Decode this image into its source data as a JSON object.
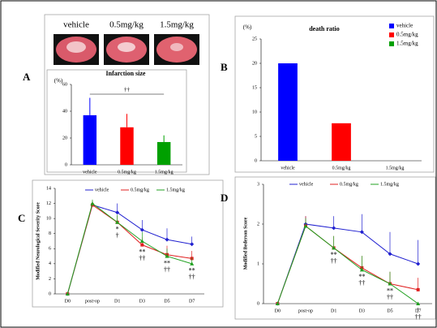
{
  "chart_data": [
    {
      "type": "bar",
      "panel_label": "A",
      "image_labels": [
        "vehicle",
        "0.5mg/kg",
        "1.5mg/kg"
      ],
      "title": "Infarction size",
      "y_label": "(%)",
      "annotation": "††",
      "categories": [
        "vehicle",
        "0.5mg/kg",
        "1.5mg/kg"
      ],
      "values": [
        37,
        28,
        17
      ],
      "errors": [
        13,
        10,
        5
      ],
      "colors": [
        "#0000ff",
        "#ff0000",
        "#00a000"
      ],
      "ylim": [
        0,
        60
      ],
      "yticks": [
        0,
        20,
        40,
        60
      ]
    },
    {
      "type": "bar",
      "panel_label": "B",
      "title": "death ratio",
      "y_label": "(%)",
      "categories": [
        "vehicle",
        "0.5mg/kg",
        "1.5mg/kg"
      ],
      "values": [
        20,
        7.7,
        0
      ],
      "colors": [
        "#0000ff",
        "#ff0000",
        "#00a000"
      ],
      "ylim": [
        0,
        25
      ],
      "yticks": [
        0,
        5,
        10,
        15,
        20,
        25
      ],
      "legend": [
        {
          "name": "vehicle",
          "color": "#0000ff"
        },
        {
          "name": "0.5mg/kg",
          "color": "#ff0000"
        },
        {
          "name": "1.5mg/kg",
          "color": "#00a000"
        }
      ]
    },
    {
      "type": "line",
      "panel_label": "C",
      "y_label": "Modified Neurological Severity Score",
      "categories": [
        "D0",
        "post-op",
        "D1",
        "D3",
        "D5",
        "D7"
      ],
      "series": [
        {
          "name": "vehicle",
          "color": "#2020d0",
          "values": [
            0,
            11.8,
            10.8,
            8.5,
            7.2,
            6.6
          ],
          "errors": [
            0,
            0.5,
            1.2,
            1.3,
            1.5,
            1.0
          ]
        },
        {
          "name": "0.5mg/kg",
          "color": "#e02020",
          "values": [
            0,
            11.8,
            9.5,
            6.5,
            5.2,
            4.7
          ],
          "errors": [
            0,
            0.5,
            0.9,
            1.0,
            1.2,
            1.0
          ]
        },
        {
          "name": "1.5mg/kg",
          "color": "#20a020",
          "values": [
            0,
            12,
            9.5,
            7,
            5,
            4
          ],
          "errors": [
            0,
            0.5,
            1.0,
            1.2,
            1.0,
            0.8
          ]
        }
      ],
      "ylim": [
        0,
        14
      ],
      "yticks": [
        0,
        2,
        4,
        6,
        8,
        10,
        12,
        14
      ],
      "annotations": [
        {
          "category": "D1",
          "texts": [
            "*",
            "†"
          ]
        },
        {
          "category": "D3",
          "texts": [
            "**",
            "††"
          ]
        },
        {
          "category": "D5",
          "texts": [
            "**",
            "††"
          ]
        },
        {
          "category": "D7",
          "texts": [
            "**",
            "††"
          ]
        }
      ]
    },
    {
      "type": "line",
      "panel_label": "D",
      "y_label": "Modified Bederson Score",
      "categories": [
        "D0",
        "post-op",
        "D1",
        "D3",
        "D5",
        "D7"
      ],
      "series": [
        {
          "name": "vehicle",
          "color": "#2020d0",
          "values": [
            0,
            2,
            1.9,
            1.8,
            1.25,
            1.0
          ],
          "errors": [
            0,
            0.2,
            0.3,
            0.45,
            0.55,
            0.6
          ]
        },
        {
          "name": "0.5mg/kg",
          "color": "#e02020",
          "values": [
            0,
            1.95,
            1.4,
            0.9,
            0.5,
            0.35
          ],
          "errors": [
            0,
            0.25,
            0.3,
            0.3,
            0.3,
            0.3
          ]
        },
        {
          "name": "1.5mg/kg",
          "color": "#20a020",
          "values": [
            0,
            1.95,
            1.4,
            0.85,
            0.5,
            0
          ],
          "errors": [
            0,
            0.2,
            0.3,
            0.35,
            0.3,
            0
          ]
        }
      ],
      "ylim": [
        0,
        3
      ],
      "yticks": [
        0,
        1,
        2,
        3
      ],
      "annotations": [
        {
          "category": "D1",
          "texts": [
            "**",
            "††"
          ]
        },
        {
          "category": "D3",
          "texts": [
            "**",
            "††"
          ]
        },
        {
          "category": "D5",
          "texts": [
            "**",
            "††"
          ]
        },
        {
          "category": "D7",
          "texts": [
            "†",
            "††"
          ]
        }
      ]
    }
  ]
}
